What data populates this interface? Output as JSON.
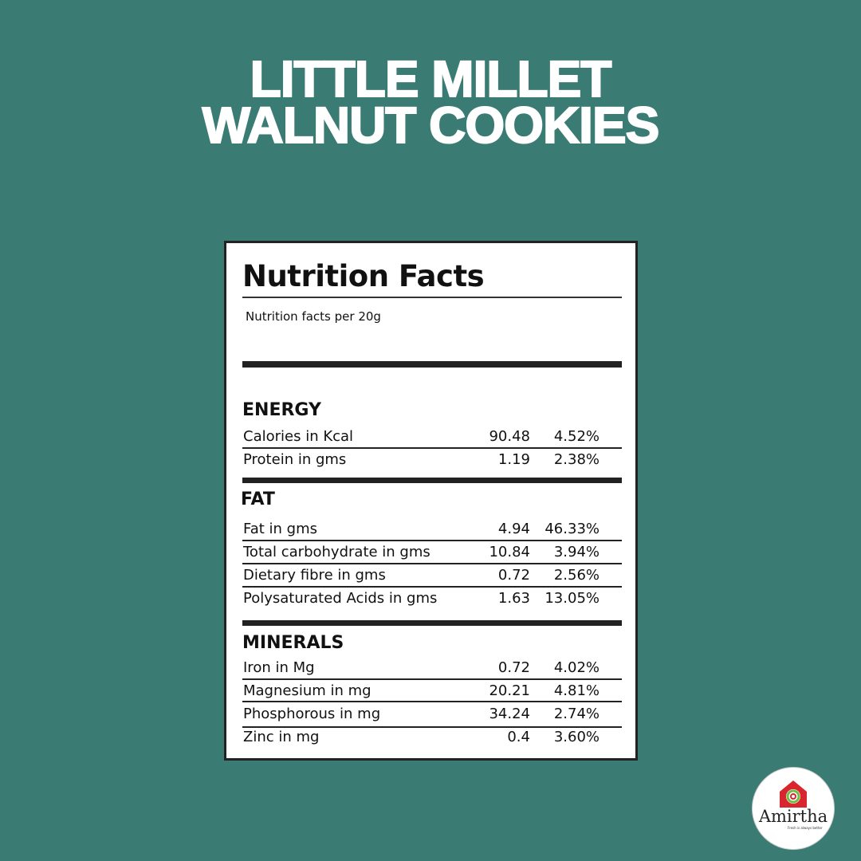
{
  "title": {
    "line1": "LITTLE MILLET",
    "line2": "WALNUT COOKIES"
  },
  "panel": {
    "heading": "Nutrition Facts",
    "subheading": "Nutrition facts per 20g",
    "sections": [
      {
        "name": "ENERGY",
        "rows": [
          {
            "label": "Calories in Kcal",
            "value": "90.48",
            "percent": "4.52%"
          },
          {
            "label": "Protein in gms",
            "value": "1.19",
            "percent": "2.38%"
          }
        ]
      },
      {
        "name": "FAT",
        "rows": [
          {
            "label": "Fat in gms",
            "value": "4.94",
            "percent": "46.33%"
          },
          {
            "label": "Total carbohydrate in gms",
            "value": "10.84",
            "percent": "3.94%"
          },
          {
            "label": "Dietary fibre in gms",
            "value": "0.72",
            "percent": "2.56%"
          },
          {
            "label": "Polysaturated Acids in gms",
            "value": "1.63",
            "percent": "13.05%"
          }
        ]
      },
      {
        "name": "MINERALS",
        "rows": [
          {
            "label": "Iron in Mg",
            "value": "0.72",
            "percent": "4.02%"
          },
          {
            "label": "Magnesium in mg",
            "value": "20.21",
            "percent": "4.81%"
          },
          {
            "label": "Phosphorous in mg",
            "value": "34.24",
            "percent": "2.74%"
          },
          {
            "label": "Zinc in mg",
            "value": "0.4",
            "percent": "3.60%"
          }
        ]
      }
    ]
  },
  "logo": {
    "brand": "Amirtha",
    "tagline": "Fresh is always better",
    "colors": {
      "house": "#d9262e",
      "swirl": "#6dbf45"
    }
  }
}
